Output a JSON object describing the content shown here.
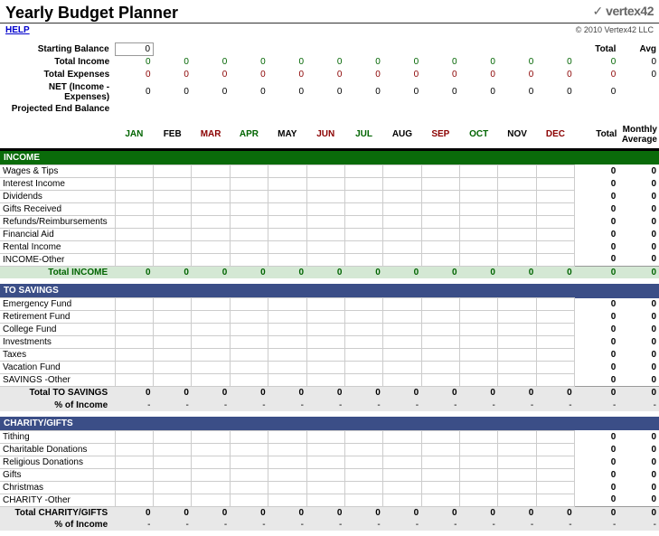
{
  "title": "Yearly Budget Planner",
  "help": "HELP",
  "logo_text": "vertex42",
  "copyright": "© 2010 Vertex42 LLC",
  "summary": {
    "starting_balance": {
      "label": "Starting Balance",
      "value": "0"
    },
    "total_income": {
      "label": "Total Income",
      "values": [
        "0",
        "0",
        "0",
        "0",
        "0",
        "0",
        "0",
        "0",
        "0",
        "0",
        "0",
        "0"
      ],
      "total": "0",
      "avg": "0"
    },
    "total_expenses": {
      "label": "Total Expenses",
      "values": [
        "0",
        "0",
        "0",
        "0",
        "0",
        "0",
        "0",
        "0",
        "0",
        "0",
        "0",
        "0"
      ],
      "total": "0",
      "avg": "0"
    },
    "net": {
      "label": "NET (Income - Expenses)",
      "values": [
        "0",
        "0",
        "0",
        "0",
        "0",
        "0",
        "0",
        "0",
        "0",
        "0",
        "0",
        "0"
      ],
      "total": "0",
      "avg": ""
    },
    "projected": {
      "label": "Projected End Balance"
    },
    "total_hdr": "Total",
    "avg_hdr": "Avg"
  },
  "months": [
    "JAN",
    "FEB",
    "MAR",
    "APR",
    "MAY",
    "JUN",
    "JUL",
    "AUG",
    "SEP",
    "OCT",
    "NOV",
    "DEC"
  ],
  "month_colors": [
    "#006400",
    "#000",
    "#8b0000",
    "#006400",
    "#000",
    "#8b0000",
    "#006400",
    "#000",
    "#8b0000",
    "#006400",
    "#000",
    "#8b0000"
  ],
  "total_col": "Total",
  "avg_col": "Monthly Average",
  "sections": [
    {
      "title": "INCOME",
      "color": "green",
      "rows": [
        "Wages & Tips",
        "Interest Income",
        "Dividends",
        "Gifts Received",
        "Refunds/Reimbursements",
        "Financial Aid",
        "Rental Income",
        "INCOME-Other"
      ],
      "total_label": "Total INCOME",
      "total_style": "green",
      "totals": [
        "0",
        "0",
        "0",
        "0",
        "0",
        "0",
        "0",
        "0",
        "0",
        "0",
        "0",
        "0"
      ],
      "grand_total": "0",
      "grand_avg": "0",
      "row_totals": [
        "0",
        "0",
        "0",
        "0",
        "0",
        "0",
        "0",
        "0"
      ],
      "row_avgs": [
        "0",
        "0",
        "0",
        "0",
        "0",
        "0",
        "0",
        "0"
      ]
    },
    {
      "title": "TO SAVINGS",
      "color": "blue",
      "rows": [
        "Emergency Fund",
        "Retirement Fund",
        "College Fund",
        "Investments",
        "Taxes",
        "Vacation Fund",
        "SAVINGS -Other"
      ],
      "total_label": "Total TO SAVINGS",
      "total_style": "gray",
      "totals": [
        "0",
        "0",
        "0",
        "0",
        "0",
        "0",
        "0",
        "0",
        "0",
        "0",
        "0",
        "0"
      ],
      "grand_total": "0",
      "grand_avg": "0",
      "row_totals": [
        "0",
        "0",
        "0",
        "0",
        "0",
        "0",
        "0"
      ],
      "row_avgs": [
        "0",
        "0",
        "0",
        "0",
        "0",
        "0",
        "0"
      ],
      "pct_label": "% of Income",
      "pcts": [
        "-",
        "-",
        "-",
        "-",
        "-",
        "-",
        "-",
        "-",
        "-",
        "-",
        "-",
        "-"
      ],
      "pct_total": "-",
      "pct_avg": "-"
    },
    {
      "title": "CHARITY/GIFTS",
      "color": "blue",
      "rows": [
        "Tithing",
        "Charitable Donations",
        "Religious Donations",
        "Gifts",
        "Christmas",
        "CHARITY -Other"
      ],
      "total_label": "Total CHARITY/GIFTS",
      "total_style": "gray",
      "totals": [
        "0",
        "0",
        "0",
        "0",
        "0",
        "0",
        "0",
        "0",
        "0",
        "0",
        "0",
        "0"
      ],
      "grand_total": "0",
      "grand_avg": "0",
      "row_totals": [
        "0",
        "0",
        "0",
        "0",
        "0",
        "0"
      ],
      "row_avgs": [
        "0",
        "0",
        "0",
        "0",
        "0",
        "0"
      ],
      "pct_label": "% of Income",
      "pcts": [
        "-",
        "-",
        "-",
        "-",
        "-",
        "-",
        "-",
        "-",
        "-",
        "-",
        "-",
        "-"
      ],
      "pct_total": "-",
      "pct_avg": "-"
    }
  ]
}
